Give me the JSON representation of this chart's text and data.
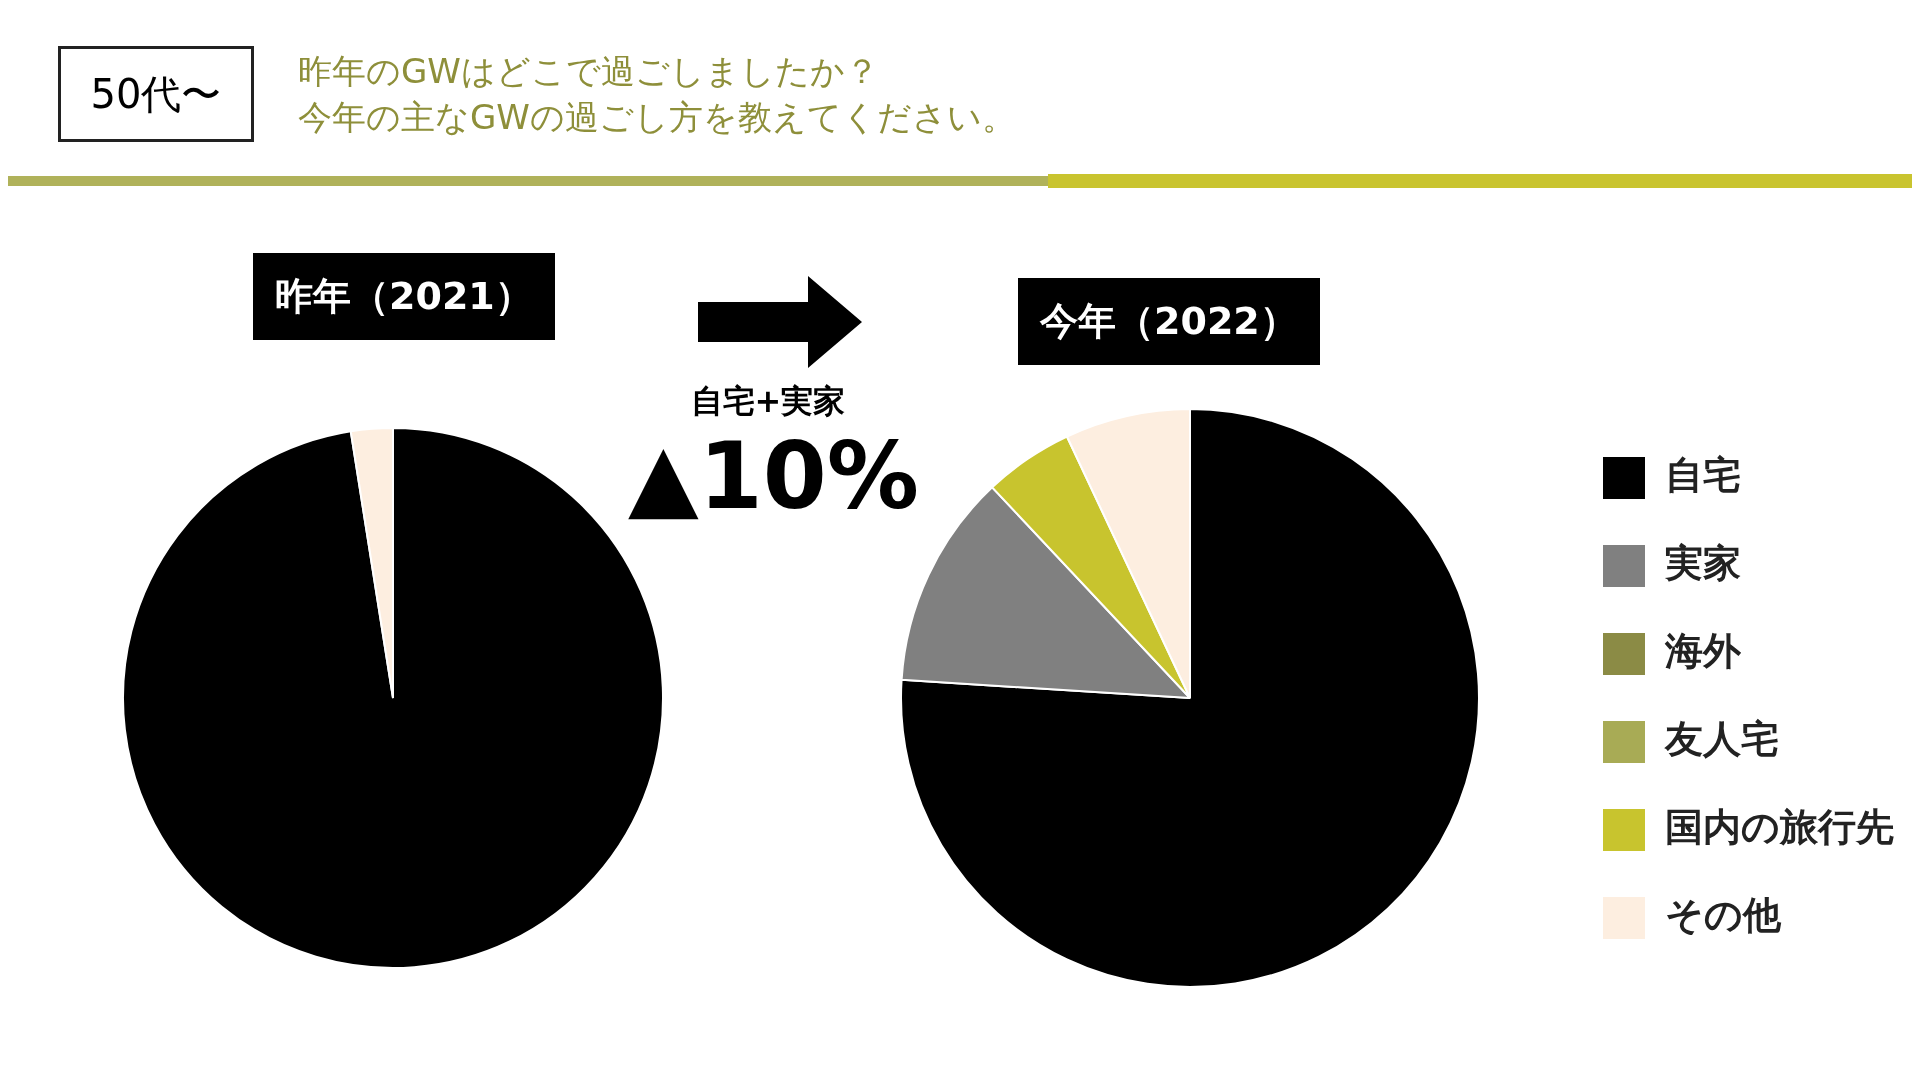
{
  "chart_data": [
    {
      "type": "other",
      "title": "50代〜",
      "annotations": [
        "昨年のGWはどこで過ごしましたか？",
        "今年の主なGWの過ごし方を教えてください。",
        "自宅+実家",
        "▲10%"
      ]
    },
    {
      "type": "pie",
      "title": "昨年（2021）",
      "categories": [
        null,
        null,
        null,
        null,
        null,
        null
      ],
      "values": [
        97.5,
        0,
        0,
        0,
        0,
        2.5
      ],
      "colors": [
        "#000000",
        "#808080",
        "#8b8b45",
        "#a8ab55",
        "#c8c42e",
        "#fdeee0"
      ],
      "legend": false
    },
    {
      "type": "pie",
      "title": "今年（2022）",
      "categories": [
        "自宅",
        "実家",
        "海外",
        "友人宅",
        "国内の旅行先",
        "その他"
      ],
      "values": [
        76,
        12,
        0,
        0,
        5,
        7
      ],
      "colors": [
        "#000000",
        "#808080",
        "#8b8b45",
        "#a8ab55",
        "#c8c42e",
        "#fdeee0"
      ],
      "legend": "right"
    }
  ]
}
